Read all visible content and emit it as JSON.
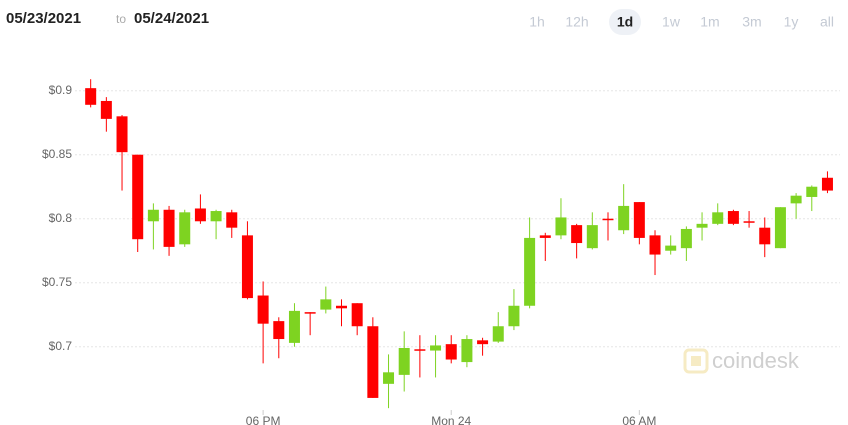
{
  "header": {
    "from": "05/23/2021",
    "to_word": "to",
    "to": "05/24/2021",
    "ranges": [
      "1h",
      "12h",
      "1d",
      "1w",
      "1m",
      "3m",
      "1y",
      "all"
    ],
    "selected_range": 2,
    "watermark": "coindesk"
  },
  "chart_data": {
    "type": "candlestick",
    "x": [
      12.5,
      13,
      13.5,
      14,
      14.5,
      15,
      15.5,
      16,
      16.5,
      17,
      17.5,
      18,
      18.5,
      19,
      19.5,
      20,
      20.5,
      21,
      21.5,
      22,
      22.5,
      23,
      23.5,
      24,
      24.5,
      25,
      25.5,
      26,
      26.5,
      27,
      27.5,
      28,
      28.5,
      29,
      29.5,
      30,
      30.5,
      31,
      31.5,
      32,
      32.5,
      33,
      33.5,
      34,
      34.5,
      35,
      35.5,
      36
    ],
    "open": [
      0.902,
      0.892,
      0.88,
      0.85,
      0.798,
      0.807,
      0.78,
      0.808,
      0.798,
      0.805,
      0.787,
      0.74,
      0.72,
      0.703,
      0.727,
      0.729,
      0.732,
      0.734,
      0.716,
      0.671,
      0.678,
      0.698,
      0.697,
      0.702,
      0.688,
      0.705,
      0.704,
      0.716,
      0.732,
      0.787,
      0.787,
      0.795,
      0.777,
      0.8,
      0.791,
      0.813,
      0.787,
      0.775,
      0.777,
      0.793,
      0.796,
      0.806,
      0.798,
      0.793,
      0.777,
      0.812,
      0.817,
      0.832
    ],
    "high": [
      0.909,
      0.895,
      0.881,
      0.85,
      0.812,
      0.81,
      0.807,
      0.819,
      0.807,
      0.807,
      0.798,
      0.751,
      0.723,
      0.734,
      0.727,
      0.747,
      0.737,
      0.734,
      0.723,
      0.694,
      0.712,
      0.709,
      0.709,
      0.709,
      0.709,
      0.707,
      0.727,
      0.745,
      0.801,
      0.789,
      0.816,
      0.796,
      0.805,
      0.805,
      0.827,
      0.813,
      0.791,
      0.787,
      0.794,
      0.805,
      0.812,
      0.807,
      0.806,
      0.801,
      0.809,
      0.82,
      0.826,
      0.837
    ],
    "low": [
      0.887,
      0.868,
      0.822,
      0.774,
      0.776,
      0.771,
      0.778,
      0.796,
      0.784,
      0.785,
      0.737,
      0.687,
      0.691,
      0.7,
      0.709,
      0.726,
      0.716,
      0.709,
      0.66,
      0.652,
      0.665,
      0.676,
      0.676,
      0.687,
      0.684,
      0.693,
      0.703,
      0.713,
      0.73,
      0.767,
      0.784,
      0.769,
      0.776,
      0.783,
      0.788,
      0.78,
      0.756,
      0.772,
      0.767,
      0.783,
      0.795,
      0.795,
      0.793,
      0.77,
      0.777,
      0.8,
      0.806,
      0.82
    ],
    "close": [
      0.889,
      0.878,
      0.852,
      0.784,
      0.807,
      0.778,
      0.805,
      0.798,
      0.806,
      0.793,
      0.738,
      0.718,
      0.706,
      0.728,
      0.726,
      0.737,
      0.73,
      0.716,
      0.66,
      0.68,
      0.699,
      0.697,
      0.701,
      0.69,
      0.706,
      0.702,
      0.716,
      0.732,
      0.785,
      0.785,
      0.801,
      0.781,
      0.795,
      0.799,
      0.81,
      0.785,
      0.772,
      0.779,
      0.792,
      0.796,
      0.805,
      0.796,
      0.797,
      0.78,
      0.809,
      0.818,
      0.825,
      0.822
    ],
    "up_color": "#7ed321",
    "down_color": "#ff0000",
    "xlim": [
      12,
      36.4
    ],
    "ylim": [
      0.649,
      0.924
    ],
    "xticks": [
      {
        "value": 18,
        "label": "06 PM"
      },
      {
        "value": 24,
        "label": "Mon 24"
      },
      {
        "value": 30,
        "label": "06 AM"
      }
    ],
    "yticks": [
      {
        "value": 0.7,
        "label": "$0.7"
      },
      {
        "value": 0.75,
        "label": "$0.75"
      },
      {
        "value": 0.8,
        "label": "$0.8"
      },
      {
        "value": 0.85,
        "label": "$0.85"
      },
      {
        "value": 0.9,
        "label": "$0.9"
      }
    ],
    "grid": true
  }
}
